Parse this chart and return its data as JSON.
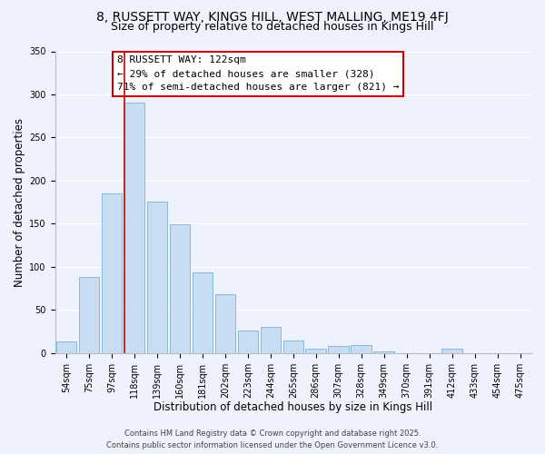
{
  "title": "8, RUSSETT WAY, KINGS HILL, WEST MALLING, ME19 4FJ",
  "subtitle": "Size of property relative to detached houses in Kings Hill",
  "xlabel": "Distribution of detached houses by size in Kings Hill",
  "ylabel": "Number of detached properties",
  "categories": [
    "54sqm",
    "75sqm",
    "97sqm",
    "118sqm",
    "139sqm",
    "160sqm",
    "181sqm",
    "202sqm",
    "223sqm",
    "244sqm",
    "265sqm",
    "286sqm",
    "307sqm",
    "328sqm",
    "349sqm",
    "370sqm",
    "391sqm",
    "412sqm",
    "433sqm",
    "454sqm",
    "475sqm"
  ],
  "values": [
    13,
    88,
    185,
    290,
    176,
    149,
    94,
    68,
    26,
    30,
    14,
    5,
    8,
    9,
    2,
    0,
    0,
    5,
    0,
    0,
    0
  ],
  "bar_color": "#c9ddf2",
  "bar_edge_color": "#7ab3d9",
  "bg_color": "#eef2fc",
  "grid_color": "#ffffff",
  "vline_index": 3,
  "vline_color": "#cc0000",
  "annotation_line1": "8 RUSSETT WAY: 122sqm",
  "annotation_line2": "← 29% of detached houses are smaller (328)",
  "annotation_line3": "71% of semi-detached houses are larger (821) →",
  "annotation_box_color": "#cc0000",
  "footer_line1": "Contains HM Land Registry data © Crown copyright and database right 2025.",
  "footer_line2": "Contains public sector information licensed under the Open Government Licence v3.0.",
  "ylim": [
    0,
    350
  ],
  "yticks": [
    0,
    50,
    100,
    150,
    200,
    250,
    300,
    350
  ],
  "title_fontsize": 10,
  "subtitle_fontsize": 9,
  "axis_label_fontsize": 8.5,
  "tick_fontsize": 7,
  "annotation_fontsize": 8,
  "footer_fontsize": 6
}
